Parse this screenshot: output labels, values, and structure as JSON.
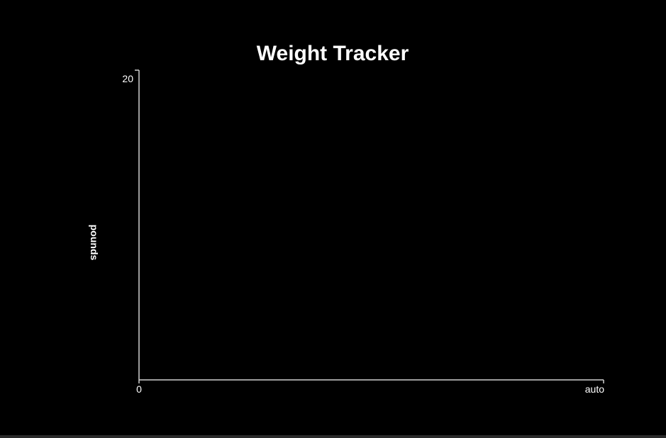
{
  "chart_data": {
    "type": "line",
    "title": "Weight Tracker",
    "ylabel": "pounds",
    "xlabel": "",
    "ylim": [
      0,
      20
    ],
    "y_ticks": [
      "20"
    ],
    "x_ticks": [
      "0",
      "auto"
    ],
    "series": [],
    "grid": false
  }
}
